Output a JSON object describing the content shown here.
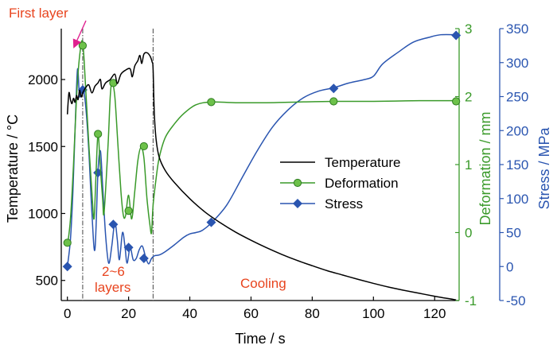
{
  "chart_data": {
    "type": "line",
    "x_axis": {
      "label": "Time / s",
      "range": [
        -2,
        128
      ],
      "ticks": [
        0,
        20,
        40,
        60,
        80,
        100,
        120
      ]
    },
    "y_axes": {
      "temperature": {
        "label": "Temperature / °C",
        "range": [
          350,
          2380
        ],
        "ticks": [
          500,
          1000,
          1500,
          2000
        ],
        "color": "#000000"
      },
      "deformation": {
        "label": "Deformation / mm",
        "range": [
          -1,
          3
        ],
        "ticks": [
          -1,
          0,
          1,
          2,
          3
        ],
        "color": "#3a9a2a"
      },
      "stress": {
        "label": "Stress / MPa",
        "range": [
          -50,
          350
        ],
        "ticks": [
          -50,
          0,
          50,
          100,
          150,
          200,
          250,
          300,
          350
        ],
        "color": "#2a55b0"
      }
    },
    "series": [
      {
        "name": "Temperature",
        "axis": "temperature",
        "color": "#000000",
        "marker": "none",
        "points": [
          [
            0,
            1740
          ],
          [
            0.5,
            1900
          ],
          [
            1,
            1850
          ],
          [
            1.5,
            1820
          ],
          [
            2,
            1860
          ],
          [
            2.5,
            1830
          ],
          [
            3,
            1880
          ],
          [
            3.5,
            1850
          ],
          [
            4,
            1920
          ],
          [
            4.5,
            1870
          ],
          [
            5,
            1900
          ],
          [
            6,
            1940
          ],
          [
            7,
            1960
          ],
          [
            8,
            1900
          ],
          [
            9,
            1950
          ],
          [
            10,
            1975
          ],
          [
            10.8,
            2000
          ],
          [
            11.3,
            1930
          ],
          [
            12.5,
            1975
          ],
          [
            14,
            2000
          ],
          [
            15.5,
            2040
          ],
          [
            16.3,
            1970
          ],
          [
            17.5,
            2040
          ],
          [
            19,
            2070
          ],
          [
            20.5,
            2080
          ],
          [
            21.2,
            2020
          ],
          [
            22,
            2100
          ],
          [
            23,
            2140
          ],
          [
            23.7,
            2180
          ],
          [
            24.3,
            2120
          ],
          [
            25,
            2190
          ],
          [
            26,
            2200
          ],
          [
            27,
            2175
          ],
          [
            27.7,
            2130
          ],
          [
            28,
            2080
          ],
          [
            28.4,
            1750
          ],
          [
            29,
            1550
          ],
          [
            30,
            1420
          ],
          [
            32,
            1320
          ],
          [
            35,
            1230
          ],
          [
            40,
            1110
          ],
          [
            45,
            1010
          ],
          [
            50,
            930
          ],
          [
            55,
            860
          ],
          [
            60,
            800
          ],
          [
            65,
            745
          ],
          [
            70,
            695
          ],
          [
            75,
            650
          ],
          [
            80,
            610
          ],
          [
            85,
            572
          ],
          [
            90,
            540
          ],
          [
            95,
            508
          ],
          [
            100,
            478
          ],
          [
            105,
            450
          ],
          [
            110,
            426
          ],
          [
            115,
            404
          ],
          [
            120,
            382
          ],
          [
            124,
            366
          ],
          [
            127,
            355
          ]
        ]
      },
      {
        "name": "Deformation",
        "axis": "deformation",
        "color": "#3a9a2a",
        "marker": "circle",
        "points": [
          [
            0,
            -0.2
          ],
          [
            1,
            0.2
          ],
          [
            2,
            1.0
          ],
          [
            3,
            2.0
          ],
          [
            4,
            2.6
          ],
          [
            5,
            2.8
          ],
          [
            6,
            2.1
          ],
          [
            7,
            1.3
          ],
          [
            8,
            0.6
          ],
          [
            8.7,
            0.2
          ],
          [
            9.3,
            0.8
          ],
          [
            10,
            1.45
          ],
          [
            10.7,
            1.0
          ],
          [
            11.5,
            0.5
          ],
          [
            12,
            0.3
          ],
          [
            13.3,
            1.3
          ],
          [
            14,
            2.0
          ],
          [
            14.6,
            2.2
          ],
          [
            15.5,
            2.0
          ],
          [
            16.5,
            1.3
          ],
          [
            17.5,
            0.6
          ],
          [
            18.3,
            0.25
          ],
          [
            19,
            0.25
          ],
          [
            20,
            0.55
          ],
          [
            21,
            0.2
          ],
          [
            22,
            0.6
          ],
          [
            23,
            1.05
          ],
          [
            24,
            1.25
          ],
          [
            25,
            1.1
          ],
          [
            26,
            0.5
          ],
          [
            27,
            0.1
          ],
          [
            27.5,
            0.0
          ],
          [
            28,
            0.4
          ],
          [
            29,
            0.8
          ],
          [
            30,
            1.1
          ],
          [
            32,
            1.4
          ],
          [
            35,
            1.6
          ],
          [
            38,
            1.75
          ],
          [
            42,
            1.88
          ],
          [
            47,
            1.92
          ],
          [
            55,
            1.91
          ],
          [
            65,
            1.91
          ],
          [
            75,
            1.92
          ],
          [
            87,
            1.93
          ],
          [
            100,
            1.93
          ],
          [
            115,
            1.94
          ],
          [
            127,
            1.94
          ]
        ],
        "marker_points": [
          [
            0,
            -0.15
          ],
          [
            5,
            2.75
          ],
          [
            10,
            1.45
          ],
          [
            15,
            2.2
          ],
          [
            20,
            0.32
          ],
          [
            25,
            1.27
          ],
          [
            47,
            1.92
          ],
          [
            87,
            1.93
          ],
          [
            127,
            1.93
          ]
        ]
      },
      {
        "name": "Stress",
        "axis": "stress",
        "color": "#2a55b0",
        "marker": "diamond",
        "points": [
          [
            0,
            0
          ],
          [
            1,
            40
          ],
          [
            1.8,
            110
          ],
          [
            2.5,
            200
          ],
          [
            3.3,
            290
          ],
          [
            4,
            250
          ],
          [
            5,
            265
          ],
          [
            6,
            235
          ],
          [
            7,
            170
          ],
          [
            8,
            80
          ],
          [
            9,
            25
          ],
          [
            10,
            140
          ],
          [
            10.8,
            170
          ],
          [
            11.5,
            120
          ],
          [
            12.5,
            45
          ],
          [
            13.5,
            5
          ],
          [
            14.5,
            30
          ],
          [
            15.5,
            65
          ],
          [
            16.3,
            40
          ],
          [
            17,
            10
          ],
          [
            18,
            50
          ],
          [
            18.8,
            30
          ],
          [
            19.5,
            5
          ],
          [
            20.5,
            28
          ],
          [
            21.5,
            10
          ],
          [
            22.5,
            12
          ],
          [
            23.5,
            25
          ],
          [
            24.5,
            30
          ],
          [
            25.5,
            15
          ],
          [
            26.5,
            4
          ],
          [
            27.5,
            12
          ],
          [
            28.5,
            16
          ],
          [
            30,
            17
          ],
          [
            32,
            22
          ],
          [
            35,
            32
          ],
          [
            38,
            43
          ],
          [
            40,
            48
          ],
          [
            42,
            50
          ],
          [
            44,
            53
          ],
          [
            47,
            64
          ],
          [
            52,
            90
          ],
          [
            57,
            130
          ],
          [
            62,
            170
          ],
          [
            67,
            205
          ],
          [
            72,
            230
          ],
          [
            77,
            248
          ],
          [
            82,
            258
          ],
          [
            87,
            263
          ],
          [
            92,
            270
          ],
          [
            97,
            275
          ],
          [
            100,
            280
          ],
          [
            103,
            298
          ],
          [
            108,
            315
          ],
          [
            113,
            330
          ],
          [
            118,
            337
          ],
          [
            122,
            341
          ],
          [
            127,
            341
          ]
        ],
        "marker_points": [
          [
            0,
            0
          ],
          [
            5,
            260
          ],
          [
            10,
            138
          ],
          [
            15,
            62
          ],
          [
            20,
            28
          ],
          [
            25,
            12
          ],
          [
            47,
            65
          ],
          [
            87,
            262
          ],
          [
            127,
            340
          ]
        ]
      }
    ],
    "reference_lines_x": [
      5,
      28
    ],
    "annotations": [
      {
        "text": "First layer",
        "color": "#e8441e"
      },
      {
        "text": "2~6",
        "color": "#e8441e"
      },
      {
        "text": "layers",
        "color": "#e8441e"
      },
      {
        "text": "Cooling",
        "color": "#e8441e"
      }
    ],
    "arrow_color": "#e0208f",
    "legend": {
      "position": "center-right",
      "entries": [
        "Temperature",
        "Deformation",
        "Stress"
      ]
    },
    "grid": false
  }
}
